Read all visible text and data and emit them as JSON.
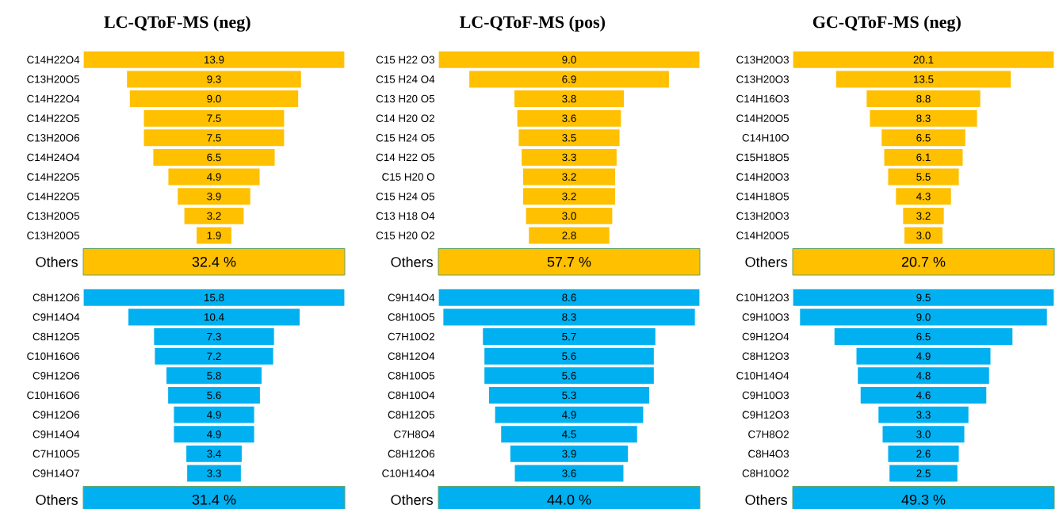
{
  "chart_data": [
    {
      "type": "other",
      "title": "LC-QToF-MS (neg)",
      "color": "#ffc000",
      "categories": [
        "C14H22O4",
        "C13H20O5",
        "C14H22O4",
        "C14H22O5",
        "C13H20O6",
        "C14H24O4",
        "C14H22O5",
        "C14H22O5",
        "C13H20O5",
        "C13H20O5",
        "Others"
      ],
      "values": [
        13.9,
        9.3,
        9.0,
        7.5,
        7.5,
        6.5,
        4.9,
        3.9,
        3.2,
        1.9,
        32.4
      ],
      "value_labels": [
        "13.9",
        "9.3",
        "9.0",
        "7.5",
        "7.5",
        "6.5",
        "4.9",
        "3.9",
        "3.2",
        "1.9",
        "32.4 %"
      ]
    },
    {
      "type": "other",
      "title": "LC-QToF-MS (pos)",
      "color": "#ffc000",
      "categories": [
        "C15 H22 O3",
        "C15 H24 O4",
        "C13 H20 O5",
        "C14 H20 O2",
        "C15 H24 O5",
        "C14 H22 O5",
        "C15 H20 O",
        "C15 H24 O5",
        "C13 H18 O4",
        "C15 H20 O2",
        "Others"
      ],
      "values": [
        9.0,
        6.9,
        3.8,
        3.6,
        3.5,
        3.3,
        3.2,
        3.2,
        3.0,
        2.8,
        57.7
      ],
      "value_labels": [
        "9.0",
        "6.9",
        "3.8",
        "3.6",
        "3.5",
        "3.3",
        "3.2",
        "3.2",
        "3.0",
        "2.8",
        "57.7 %"
      ]
    },
    {
      "type": "other",
      "title": "GC-QToF-MS (neg)",
      "color": "#ffc000",
      "categories": [
        "C13H20O3",
        "C13H20O3",
        "C14H16O3",
        "C14H20O5",
        "C14H10O",
        "C15H18O5",
        "C14H20O3",
        "C14H18O5",
        "C13H20O3",
        "C14H20O5",
        "Others"
      ],
      "values": [
        20.1,
        13.5,
        8.8,
        8.3,
        6.5,
        6.1,
        5.5,
        4.3,
        3.2,
        3.0,
        20.7
      ],
      "value_labels": [
        "20.1",
        "13.5",
        "8.8",
        "8.3",
        "6.5",
        "6.1",
        "5.5",
        "4.3",
        "3.2",
        "3.0",
        "20.7 %"
      ]
    },
    {
      "type": "other",
      "color": "#00b0f0",
      "categories": [
        "C8H12O6",
        "C9H14O4",
        "C8H12O5",
        "C10H16O6",
        "C9H12O6",
        "C10H16O6",
        "C9H12O6",
        "C9H14O4",
        "C7H10O5",
        "C9H14O7",
        "Others"
      ],
      "values": [
        15.8,
        10.4,
        7.3,
        7.2,
        5.8,
        5.6,
        4.9,
        4.9,
        3.4,
        3.3,
        31.4
      ],
      "value_labels": [
        "15.8",
        "10.4",
        "7.3",
        "7.2",
        "5.8",
        "5.6",
        "4.9",
        "4.9",
        "3.4",
        "3.3",
        "31.4 %"
      ]
    },
    {
      "type": "other",
      "color": "#00b0f0",
      "categories": [
        "C9H14O4",
        "C8H10O5",
        "C7H10O2",
        "C8H12O4",
        "C8H10O5",
        "C8H10O4",
        "C8H12O5",
        "C7H8O4",
        "C8H12O6",
        "C10H14O4",
        "Others"
      ],
      "values": [
        8.6,
        8.3,
        5.7,
        5.6,
        5.6,
        5.3,
        4.9,
        4.5,
        3.9,
        3.6,
        44.0
      ],
      "value_labels": [
        "8.6",
        "8.3",
        "5.7",
        "5.6",
        "5.6",
        "5.3",
        "4.9",
        "4.5",
        "3.9",
        "3.6",
        "44.0 %"
      ]
    },
    {
      "type": "other",
      "color": "#00b0f0",
      "categories": [
        "C10H12O3",
        "C9H10O3",
        "C9H12O4",
        "C8H12O3",
        "C10H14O4",
        "C9H10O3",
        "C9H12O3",
        "C7H8O2",
        "C8H4O3",
        "C8H10O2",
        "Others"
      ],
      "values": [
        9.5,
        9.0,
        6.5,
        4.9,
        4.8,
        4.6,
        3.3,
        3.0,
        2.6,
        2.5,
        49.3
      ],
      "value_labels": [
        "9.5",
        "9.0",
        "6.5",
        "4.9",
        "4.8",
        "4.6",
        "3.3",
        "3.0",
        "2.6",
        "2.5",
        "49.3 %"
      ]
    }
  ]
}
